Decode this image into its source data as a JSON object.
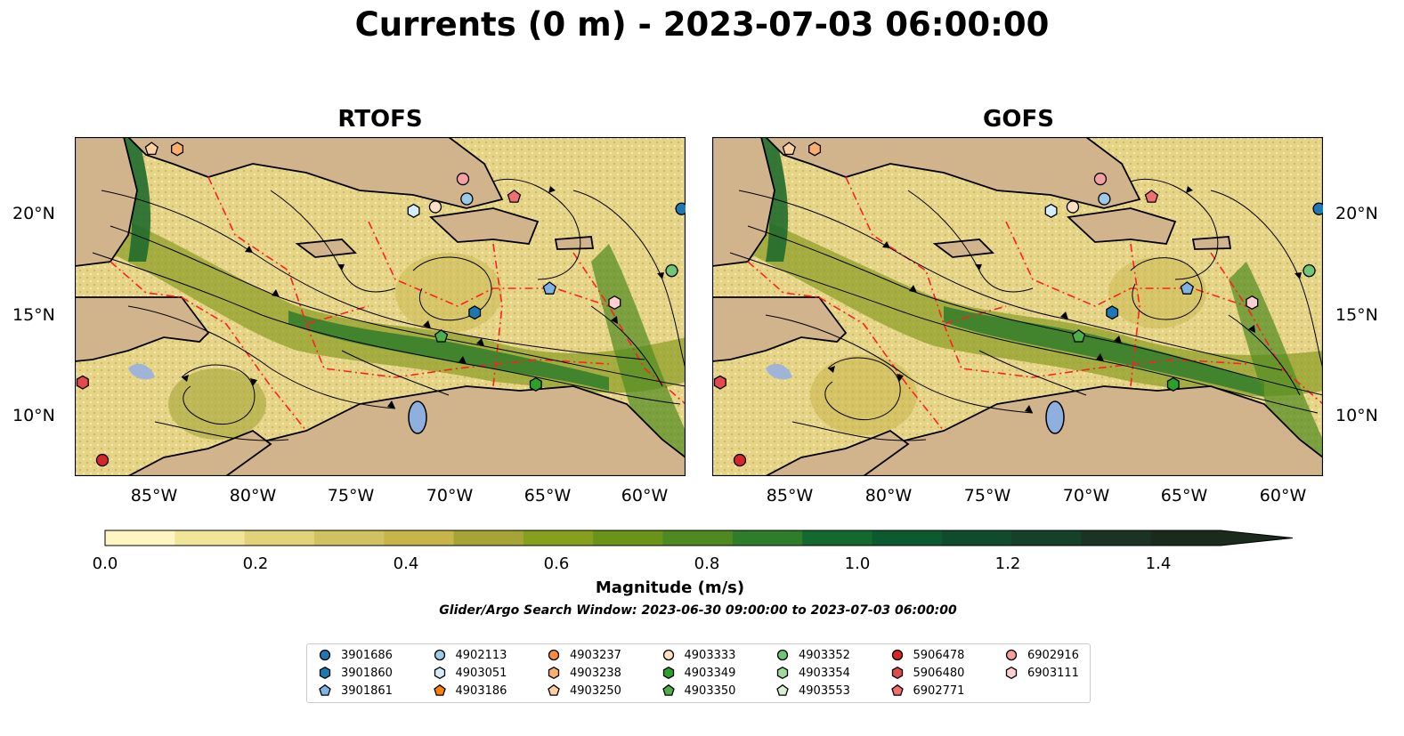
{
  "title": "Currents (0 m) - 2023-07-03 06:00:00",
  "panels": [
    {
      "title": "RTOFS"
    },
    {
      "title": "GOFS"
    }
  ],
  "lat_labels": [
    "20°N",
    "15°N",
    "10°N"
  ],
  "lon_labels": [
    "85°W",
    "80°W",
    "75°W",
    "70°W",
    "65°W",
    "60°W"
  ],
  "map_extent": {
    "lon": [
      -89,
      -58
    ],
    "lat": [
      7,
      24
    ]
  },
  "colorbar": {
    "label": "Magnitude (m/s)",
    "ticks": [
      "0.0",
      "0.2",
      "0.4",
      "0.6",
      "0.8",
      "1.0",
      "1.2",
      "1.4"
    ],
    "colors": [
      "#fdf6c3",
      "#f1e59a",
      "#e2d27a",
      "#d2c160",
      "#c8b54a",
      "#a5a537",
      "#869f1e",
      "#6a9418",
      "#4f8a20",
      "#2f7d2a",
      "#14692f",
      "#0d5a30",
      "#104b2e",
      "#15402a",
      "#1a3324",
      "#1a2a1c"
    ],
    "extend": "max"
  },
  "search_window": "Glider/Argo Search Window: 2023-06-30 09:00:00 to 2023-07-03 06:00:00",
  "legend": {
    "items": [
      {
        "id": "3901686",
        "marker": "circle",
        "color": "#1f77b4"
      },
      {
        "id": "3901860",
        "marker": "hexagon",
        "color": "#1f77b4"
      },
      {
        "id": "3901861",
        "marker": "pentagon",
        "color": "#7fb2e5"
      },
      {
        "id": "4902113",
        "marker": "circle",
        "color": "#9ecae9"
      },
      {
        "id": "4903051",
        "marker": "hexagon",
        "color": "#d6ecfa"
      },
      {
        "id": "4903186",
        "marker": "pentagon",
        "color": "#ff7f0e"
      },
      {
        "id": "4903237",
        "marker": "circle",
        "color": "#fd8d3c"
      },
      {
        "id": "4903238",
        "marker": "hexagon",
        "color": "#fdae6b"
      },
      {
        "id": "4903250",
        "marker": "pentagon",
        "color": "#fdd0a2"
      },
      {
        "id": "4903333",
        "marker": "circle",
        "color": "#fde0c5"
      },
      {
        "id": "4903349",
        "marker": "hexagon",
        "color": "#2ca02c"
      },
      {
        "id": "4903350",
        "marker": "pentagon",
        "color": "#4daf4a"
      },
      {
        "id": "4903352",
        "marker": "circle",
        "color": "#74c476"
      },
      {
        "id": "4903354",
        "marker": "hexagon",
        "color": "#a1d99b"
      },
      {
        "id": "4903553",
        "marker": "pentagon",
        "color": "#d9f0d3"
      },
      {
        "id": "5906478",
        "marker": "circle",
        "color": "#d62728"
      },
      {
        "id": "5906480",
        "marker": "hexagon",
        "color": "#e34a4a"
      },
      {
        "id": "6902771",
        "marker": "pentagon",
        "color": "#f07070"
      },
      {
        "id": "6902916",
        "marker": "circle",
        "color": "#f4a0a0"
      },
      {
        "id": "6903111",
        "marker": "hexagon",
        "color": "#fcd0d0"
      }
    ]
  },
  "rtofs_floats": [
    {
      "lon": -85.1,
      "lat": 23.4,
      "marker": "pentagon",
      "color": "#fdd0a2"
    },
    {
      "lon": -83.8,
      "lat": 23.4,
      "marker": "hexagon",
      "color": "#fdae6b"
    },
    {
      "lon": -69.3,
      "lat": 21.9,
      "marker": "circle",
      "color": "#f4a0a0"
    },
    {
      "lon": -69.1,
      "lat": 20.9,
      "marker": "circle",
      "color": "#9ecae9"
    },
    {
      "lon": -71.8,
      "lat": 20.3,
      "marker": "hexagon",
      "color": "#d6ecfa"
    },
    {
      "lon": -70.7,
      "lat": 20.5,
      "marker": "circle",
      "color": "#fde0c5"
    },
    {
      "lon": -66.7,
      "lat": 21.0,
      "marker": "pentagon",
      "color": "#f07070"
    },
    {
      "lon": -58.2,
      "lat": 20.4,
      "marker": "circle",
      "color": "#1f77b4"
    },
    {
      "lon": -58.7,
      "lat": 17.3,
      "marker": "circle",
      "color": "#74c476"
    },
    {
      "lon": -64.9,
      "lat": 16.4,
      "marker": "pentagon",
      "color": "#7fb2e5"
    },
    {
      "lon": -61.6,
      "lat": 15.7,
      "marker": "hexagon",
      "color": "#fcd0d0"
    },
    {
      "lon": -68.7,
      "lat": 15.2,
      "marker": "hexagon",
      "color": "#1f77b4"
    },
    {
      "lon": -70.4,
      "lat": 14.0,
      "marker": "pentagon",
      "color": "#4daf4a"
    },
    {
      "lon": -65.6,
      "lat": 11.6,
      "marker": "hexagon",
      "color": "#2ca02c"
    },
    {
      "lon": -88.6,
      "lat": 11.7,
      "marker": "hexagon",
      "color": "#e34a4a"
    },
    {
      "lon": -87.6,
      "lat": 7.8,
      "marker": "circle",
      "color": "#d62728"
    }
  ],
  "gofs_floats": [
    {
      "lon": -85.1,
      "lat": 23.4,
      "marker": "pentagon",
      "color": "#fdd0a2"
    },
    {
      "lon": -83.8,
      "lat": 23.4,
      "marker": "hexagon",
      "color": "#fdae6b"
    },
    {
      "lon": -69.3,
      "lat": 21.9,
      "marker": "circle",
      "color": "#f4a0a0"
    },
    {
      "lon": -69.1,
      "lat": 20.9,
      "marker": "circle",
      "color": "#9ecae9"
    },
    {
      "lon": -71.8,
      "lat": 20.3,
      "marker": "hexagon",
      "color": "#d6ecfa"
    },
    {
      "lon": -70.7,
      "lat": 20.5,
      "marker": "circle",
      "color": "#fde0c5"
    },
    {
      "lon": -66.7,
      "lat": 21.0,
      "marker": "pentagon",
      "color": "#f07070"
    },
    {
      "lon": -58.2,
      "lat": 20.4,
      "marker": "circle",
      "color": "#1f77b4"
    },
    {
      "lon": -58.7,
      "lat": 17.3,
      "marker": "circle",
      "color": "#74c476"
    },
    {
      "lon": -64.9,
      "lat": 16.4,
      "marker": "pentagon",
      "color": "#7fb2e5"
    },
    {
      "lon": -61.6,
      "lat": 15.7,
      "marker": "hexagon",
      "color": "#fcd0d0"
    },
    {
      "lon": -68.7,
      "lat": 15.2,
      "marker": "hexagon",
      "color": "#1f77b4"
    },
    {
      "lon": -70.4,
      "lat": 14.0,
      "marker": "pentagon",
      "color": "#4daf4a"
    },
    {
      "lon": -65.6,
      "lat": 11.6,
      "marker": "hexagon",
      "color": "#2ca02c"
    },
    {
      "lon": -88.6,
      "lat": 11.7,
      "marker": "hexagon",
      "color": "#e34a4a"
    },
    {
      "lon": -87.6,
      "lat": 7.8,
      "marker": "circle",
      "color": "#d62728"
    }
  ]
}
